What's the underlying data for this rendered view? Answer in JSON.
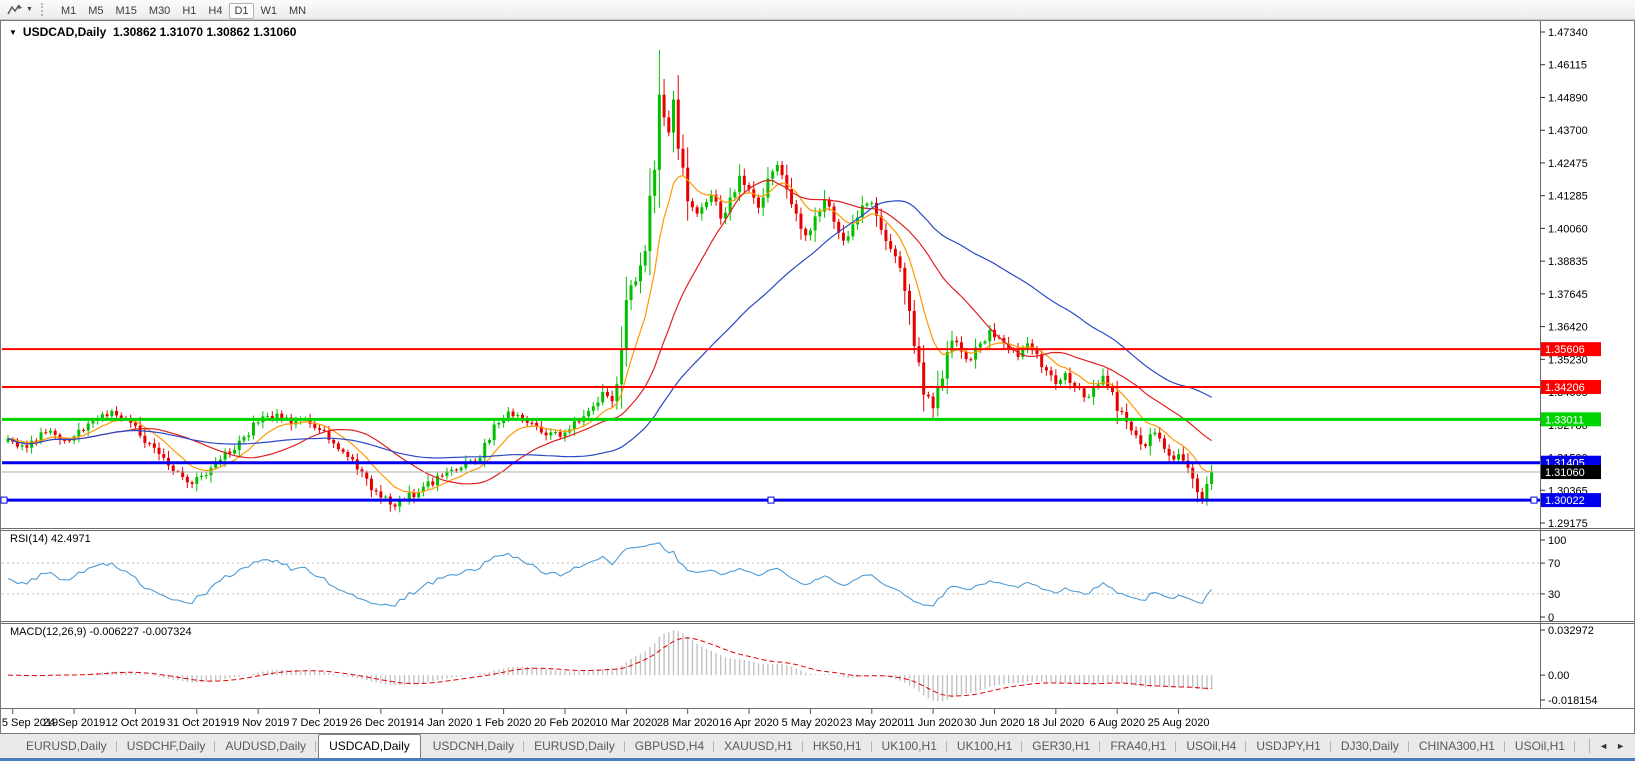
{
  "toolbar": {
    "timeframes": [
      "M1",
      "M5",
      "M15",
      "M30",
      "H1",
      "H4",
      "D1",
      "W1",
      "MN"
    ],
    "active_timeframe": "D1"
  },
  "chart": {
    "title": "USDCAD,Daily  1.30862 1.31070 1.30862 1.31060",
    "symbol": "USDCAD",
    "period": "Daily"
  },
  "chart_data": {
    "type": "candlestick",
    "symbol": "USDCAD",
    "timeframe": "Daily",
    "ohlc_display": {
      "open": "1.30862",
      "high": "1.31070",
      "low": "1.30862",
      "close": "1.31060"
    },
    "y_axis_ticks": [
      "1.47340",
      "1.46115",
      "1.44890",
      "1.43700",
      "1.42475",
      "1.41285",
      "1.40060",
      "1.38835",
      "1.37645",
      "1.36420",
      "1.35230",
      "1.34005",
      "1.32780",
      "1.31590",
      "1.30365",
      "1.29175"
    ],
    "y_top": 1.4734,
    "y_bottom": 1.29175,
    "x_tick_labels": [
      "5 Sep 2019",
      "24 Sep 2019",
      "12 Oct 2019",
      "31 Oct 2019",
      "19 Nov 2019",
      "7 Dec 2019",
      "26 Dec 2019",
      "14 Jan 2020",
      "1 Feb 2020",
      "20 Feb 2020",
      "10 Mar 2020",
      "28 Mar 2020",
      "16 Apr 2020",
      "5 May 2020",
      "23 May 2020",
      "11 Jun 2020",
      "30 Jun 2020",
      "18 Jul 2020",
      "6 Aug 2020",
      "25 Aug 2020"
    ],
    "x_tick_first_candle": 1,
    "x_tick_every": 13,
    "num_candles": 256,
    "close_anchors": [
      [
        0,
        1.323
      ],
      [
        4,
        1.3196
      ],
      [
        8,
        1.3252
      ],
      [
        12,
        1.3224
      ],
      [
        15,
        1.3262
      ],
      [
        18,
        1.3295
      ],
      [
        22,
        1.3332
      ],
      [
        26,
        1.3288
      ],
      [
        30,
        1.3212
      ],
      [
        34,
        1.313
      ],
      [
        38,
        1.3068
      ],
      [
        41,
        1.3092
      ],
      [
        45,
        1.3152
      ],
      [
        49,
        1.3222
      ],
      [
        53,
        1.329
      ],
      [
        57,
        1.3322
      ],
      [
        60,
        1.3282
      ],
      [
        63,
        1.3304
      ],
      [
        66,
        1.3262
      ],
      [
        69,
        1.3212
      ],
      [
        72,
        1.3162
      ],
      [
        75,
        1.3104
      ],
      [
        78,
        1.3034
      ],
      [
        81,
        1.2986
      ],
      [
        84,
        1.3002
      ],
      [
        88,
        1.3052
      ],
      [
        92,
        1.3092
      ],
      [
        96,
        1.3122
      ],
      [
        100,
        1.3158
      ],
      [
        103,
        1.3282
      ],
      [
        106,
        1.333
      ],
      [
        110,
        1.3288
      ],
      [
        114,
        1.3242
      ],
      [
        118,
        1.3252
      ],
      [
        122,
        1.3312
      ],
      [
        126,
        1.3402
      ],
      [
        128,
        1.3368
      ],
      [
        130,
        1.3562
      ],
      [
        131,
        1.3742
      ],
      [
        133,
        1.3812
      ],
      [
        135,
        1.3924
      ],
      [
        137,
        1.4224
      ],
      [
        138,
        1.4502
      ],
      [
        139,
        1.4418
      ],
      [
        140,
        1.4362
      ],
      [
        141,
        1.4484
      ],
      [
        142,
        1.4302
      ],
      [
        143,
        1.4232
      ],
      [
        144,
        1.4108
      ],
      [
        146,
        1.4062
      ],
      [
        149,
        1.4132
      ],
      [
        151,
        1.4044
      ],
      [
        153,
        1.4122
      ],
      [
        155,
        1.4202
      ],
      [
        157,
        1.4152
      ],
      [
        159,
        1.4084
      ],
      [
        161,
        1.4192
      ],
      [
        163,
        1.4242
      ],
      [
        165,
        1.4152
      ],
      [
        167,
        1.4062
      ],
      [
        169,
        1.3982
      ],
      [
        171,
        1.4052
      ],
      [
        173,
        1.4112
      ],
      [
        175,
        1.4032
      ],
      [
        177,
        1.3962
      ],
      [
        179,
        1.4022
      ],
      [
        181,
        1.4092
      ],
      [
        183,
        1.4102
      ],
      [
        185,
        1.4002
      ],
      [
        187,
        1.3932
      ],
      [
        189,
        1.3862
      ],
      [
        191,
        1.3702
      ],
      [
        192,
        1.3572
      ],
      [
        194,
        1.3392
      ],
      [
        196,
        1.3342
      ],
      [
        198,
        1.3452
      ],
      [
        200,
        1.3592
      ],
      [
        202,
        1.3552
      ],
      [
        204,
        1.3522
      ],
      [
        206,
        1.3582
      ],
      [
        208,
        1.3632
      ],
      [
        210,
        1.3602
      ],
      [
        212,
        1.3562
      ],
      [
        214,
        1.3532
      ],
      [
        216,
        1.3582
      ],
      [
        218,
        1.3542
      ],
      [
        220,
        1.3482
      ],
      [
        222,
        1.3432
      ],
      [
        224,
        1.3472
      ],
      [
        226,
        1.3422
      ],
      [
        228,
        1.3382
      ],
      [
        230,
        1.3422
      ],
      [
        232,
        1.3462
      ],
      [
        234,
        1.3402
      ],
      [
        235,
        1.3332
      ],
      [
        237,
        1.3292
      ],
      [
        239,
        1.3242
      ],
      [
        241,
        1.3202
      ],
      [
        243,
        1.3252
      ],
      [
        245,
        1.3192
      ],
      [
        247,
        1.3152
      ],
      [
        248,
        1.3172
      ],
      [
        250,
        1.3122
      ],
      [
        251,
        1.3082
      ],
      [
        252,
        1.3032
      ],
      [
        253,
        1.3006
      ],
      [
        254,
        1.3062
      ],
      [
        255,
        1.3106
      ]
    ],
    "extremes": {
      "high": {
        "index": 138,
        "price": 1.4668
      },
      "low": {
        "index": 252,
        "price": 1.2994
      }
    },
    "candle_up_color": "#00c000",
    "candle_down_color": "#e80000",
    "moving_averages": [
      {
        "name": "fast",
        "type": "ema",
        "period": 10,
        "color": "#ff9900"
      },
      {
        "name": "medium",
        "type": "sma",
        "period": 25,
        "color": "#e02020"
      },
      {
        "name": "slow",
        "type": "sma",
        "period": 55,
        "color": "#2b49c6"
      }
    ],
    "horizontal_lines": [
      {
        "price": 1.35606,
        "label": "1.35606",
        "color": "#ff0000",
        "thickness": 2,
        "selected": false
      },
      {
        "price": 1.34206,
        "label": "1.34206",
        "color": "#ff0000",
        "thickness": 2,
        "selected": false
      },
      {
        "price": 1.33011,
        "label": "1.33011",
        "color": "#00d400",
        "thickness": 3,
        "selected": false
      },
      {
        "price": 1.31405,
        "label": "1.31405",
        "color": "#0000ee",
        "thickness": 3,
        "selected": false
      },
      {
        "price": 1.30022,
        "label": "1.30022",
        "color": "#0000ee",
        "thickness": 3,
        "selected": true
      }
    ],
    "current_price": {
      "value": 1.3106,
      "label": "1.31060",
      "line_color": "#ababab",
      "badge_color": "#000000"
    },
    "indicators": [
      {
        "name": "RSI",
        "label": "RSI(14) 42.4971",
        "period": 14,
        "current": "42.4971",
        "levels": [
          70,
          30
        ],
        "scale_labels": [
          {
            "v": 100,
            "t": "100"
          },
          {
            "v": 70,
            "t": "70"
          },
          {
            "v": 30,
            "t": "30"
          },
          {
            "v": 0,
            "t": "0"
          }
        ],
        "color": "#4f9bd5"
      },
      {
        "name": "MACD",
        "label": "MACD(12,26,9) -0.006227 -0.007324",
        "params": [
          12,
          26,
          9
        ],
        "values": [
          "-0.006227",
          "-0.007324"
        ],
        "scale_top": 0.032972,
        "scale_bottom": -0.018154,
        "scale_labels": [
          {
            "v": 0.032972,
            "t": "0.032972"
          },
          {
            "v": 0,
            "t": "0.00"
          },
          {
            "v": -0.018154,
            "t": "-0.018154"
          }
        ],
        "histogram_color": "#c2c2c2",
        "signal_color": "#e00000"
      }
    ]
  },
  "tabs": {
    "items": [
      "EURUSD,Daily",
      "USDCHF,Daily",
      "AUDUSD,Daily",
      "USDCAD,Daily",
      "USDCNH,Daily",
      "EURUSD,Daily",
      "GBPUSD,H4",
      "XAUUSD,H1",
      "HK50,H1",
      "UK100,H1",
      "UK100,H1",
      "GER30,H1",
      "FRA40,H1",
      "USOil,H4",
      "USDJPY,H1",
      "DJ30,Daily",
      "CHINA300,H1",
      "USOil,H1"
    ],
    "active_index": 3,
    "scroll_left_icon": "◄",
    "scroll_right_icon": "►"
  }
}
